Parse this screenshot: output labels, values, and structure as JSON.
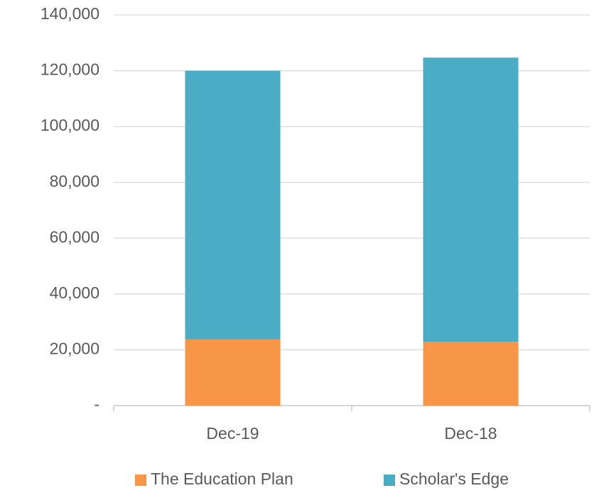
{
  "chart_data": {
    "type": "stacked_bar",
    "categories": [
      "Dec-19",
      "Dec-18"
    ],
    "series": [
      {
        "name": "The Education Plan",
        "color": "#f79646",
        "values": [
          23700,
          22900
        ]
      },
      {
        "name": "Scholar's Edge",
        "color": "#4bacc6",
        "values": [
          96300,
          101800
        ]
      }
    ],
    "ylim": [
      0,
      140000
    ],
    "yticks": [
      {
        "value": 0,
        "label": "-"
      },
      {
        "value": 20000,
        "label": "20,000"
      },
      {
        "value": 40000,
        "label": "40,000"
      },
      {
        "value": 60000,
        "label": "60,000"
      },
      {
        "value": 80000,
        "label": "80,000"
      },
      {
        "value": 100000,
        "label": "100,000"
      },
      {
        "value": 120000,
        "label": "120,000"
      },
      {
        "value": 140000,
        "label": "140,000"
      }
    ],
    "grid": true,
    "legend": "bottom"
  }
}
